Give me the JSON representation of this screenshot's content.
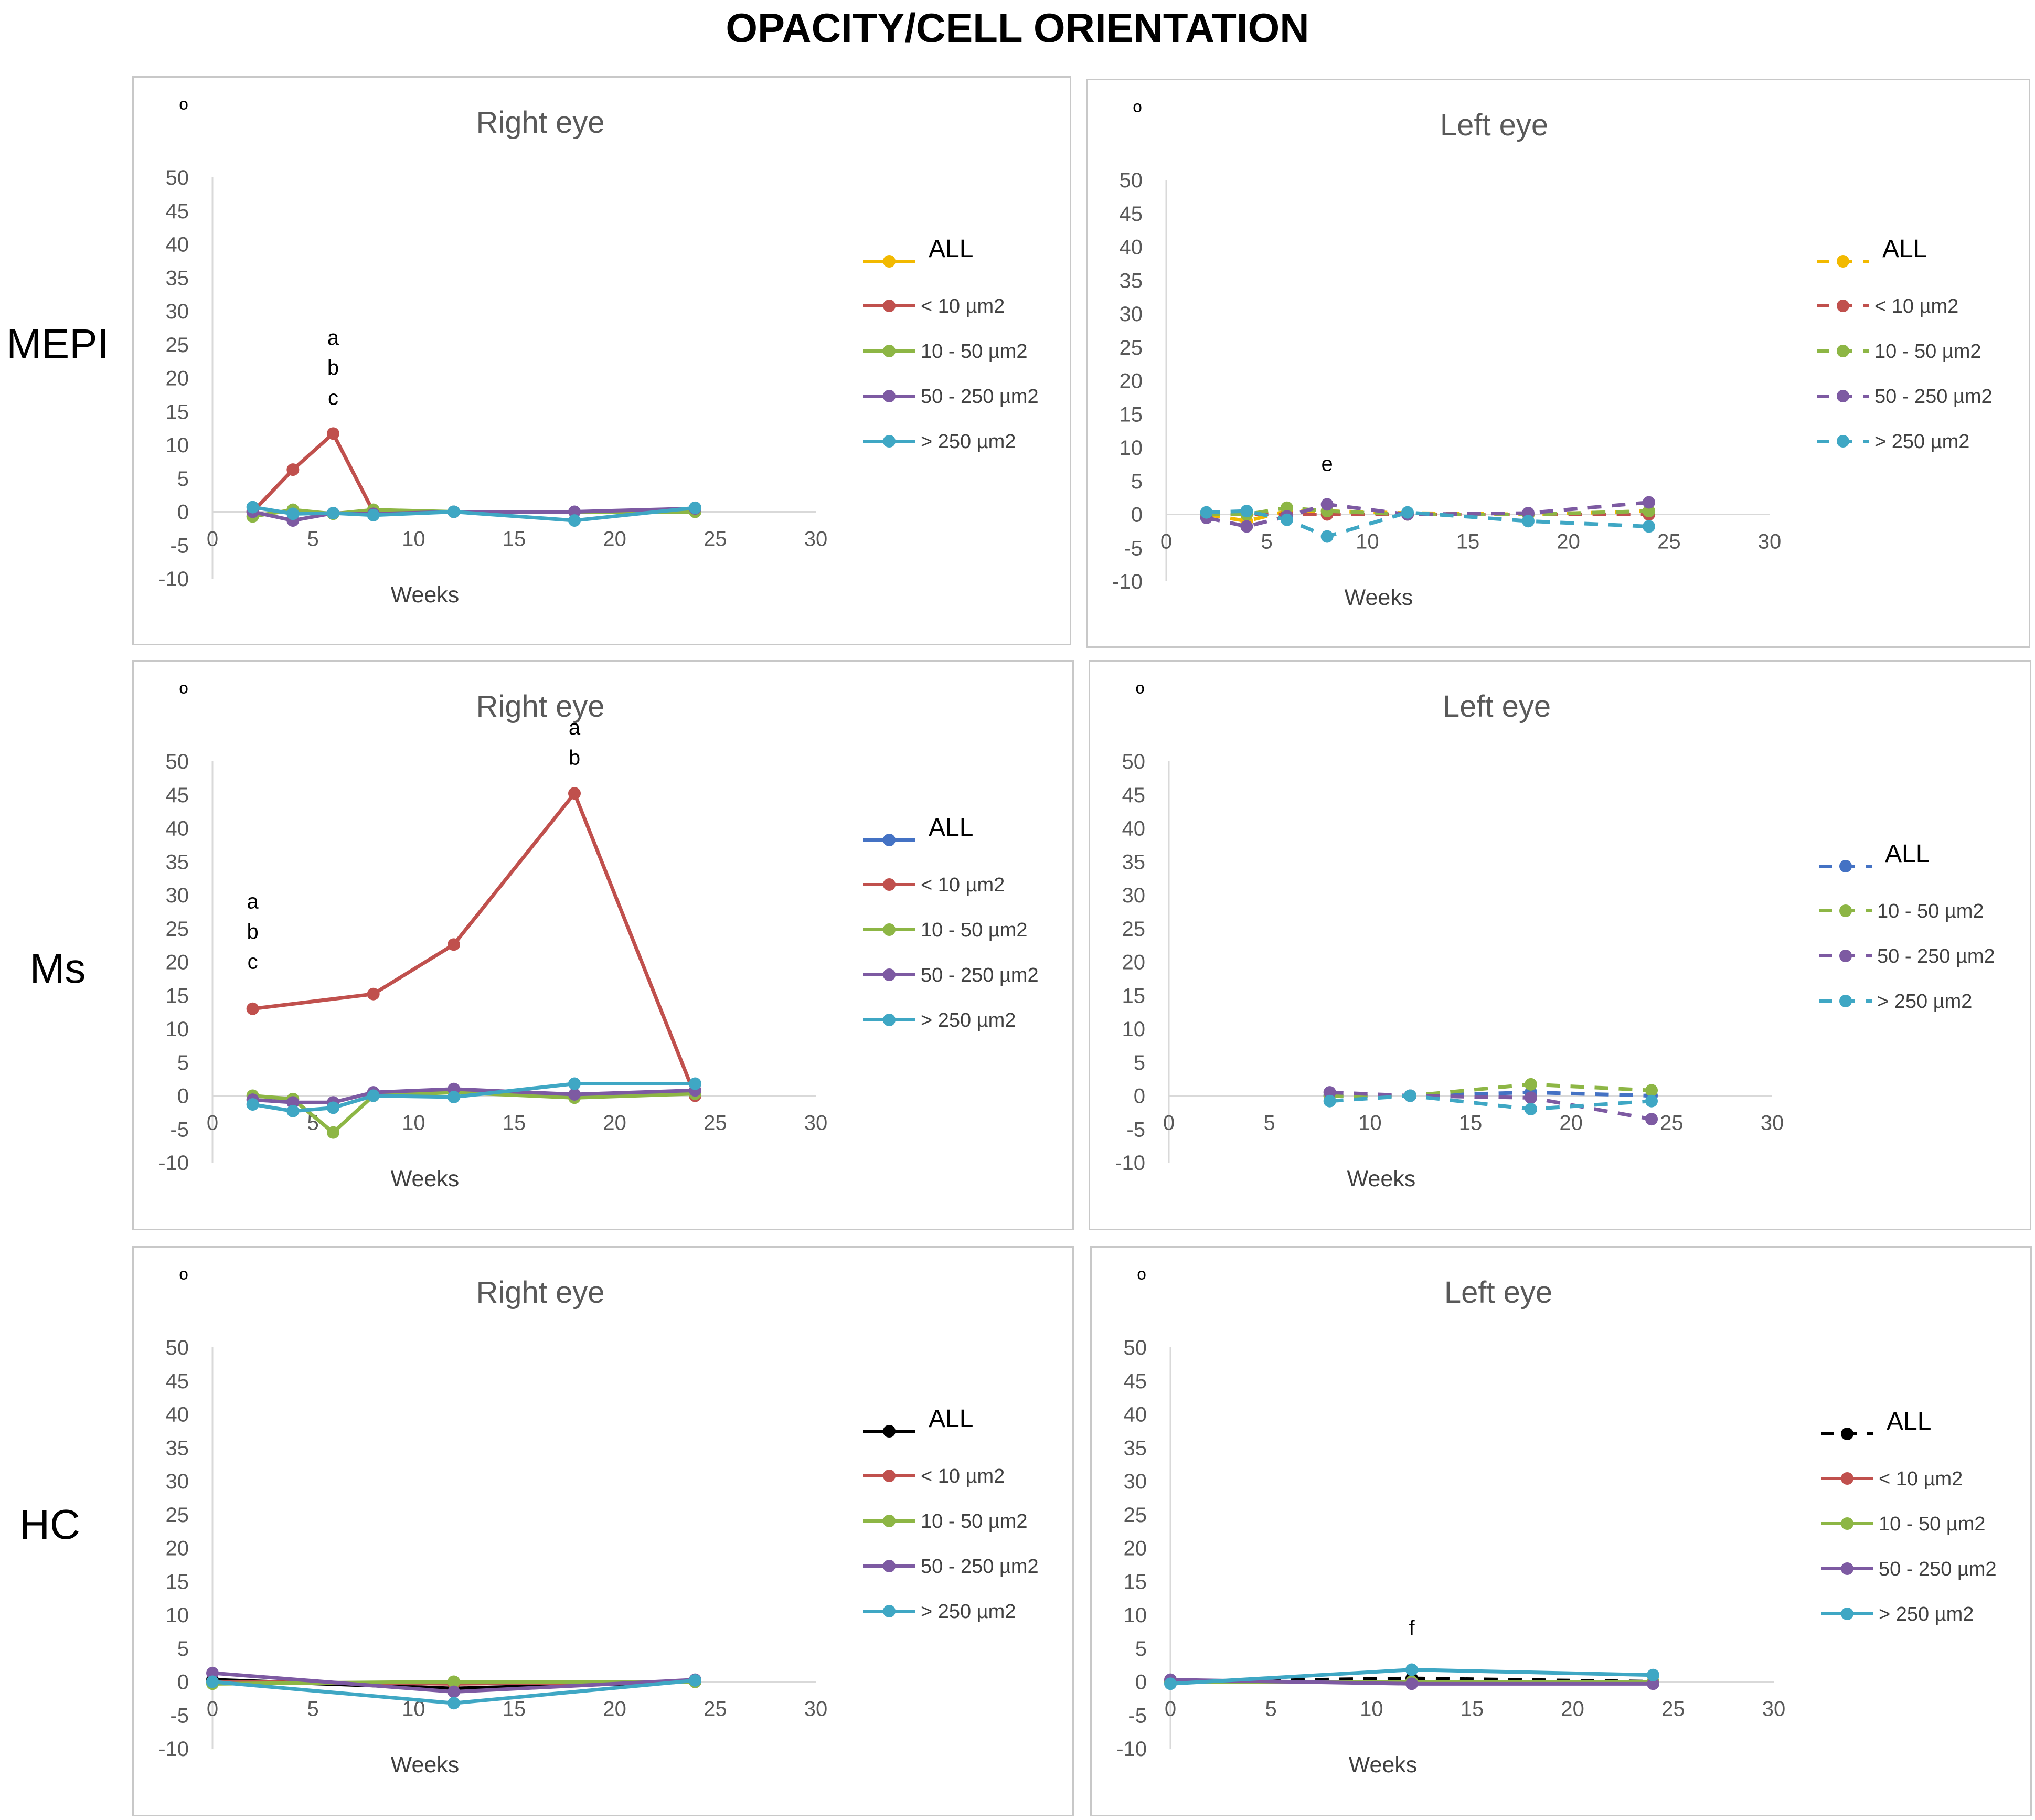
{
  "figure_title": "OPACITY/CELL ORIENTATION",
  "row_labels": [
    "MEPI",
    "Ms",
    "HC"
  ],
  "colors": {
    "ALL_mepi": "#F2B900",
    "ALL_ms": "#4472C4",
    "ALL_hc": "#000000",
    "lt10": "#C0504D",
    "r10_50": "#8DB645",
    "r50_250": "#7D5AA2",
    "gt250": "#3FA7C4"
  },
  "chart_data": [
    {
      "type": "line",
      "row": "MEPI",
      "title": "Right eye",
      "ylabel": "º",
      "xlabel": "Weeks",
      "xlim": [
        0,
        30
      ],
      "ylim": [
        -10,
        50
      ],
      "xticks": [
        "0",
        "5",
        "10",
        "15",
        "20",
        "25",
        "30"
      ],
      "yticks": [
        "50",
        "45",
        "40",
        "35",
        "30",
        "25",
        "20",
        "15",
        "10",
        "5",
        "0",
        "-5",
        "-10"
      ],
      "line_style": "solid",
      "grid": false,
      "legend_position": "right",
      "series": [
        {
          "name": "ALL",
          "color_key": "ALL_mepi",
          "x": [],
          "y": []
        },
        {
          "name": "< 10 µm2",
          "color_key": "lt10",
          "x": [
            2,
            4,
            6,
            8
          ],
          "y": [
            0,
            6.3,
            11.7,
            0
          ]
        },
        {
          "name": "10 - 50 µm2",
          "color_key": "r10_50",
          "x": [
            2,
            4,
            6,
            8,
            12,
            24
          ],
          "y": [
            -0.7,
            0.3,
            -0.3,
            0.3,
            0,
            0
          ]
        },
        {
          "name": "50 - 250 µm2",
          "color_key": "r50_250",
          "x": [
            2,
            4,
            6,
            8,
            12,
            18,
            24
          ],
          "y": [
            0,
            -1.3,
            -0.2,
            -0.3,
            0,
            0,
            0.5
          ]
        },
        {
          "name": "> 250 µm2",
          "color_key": "gt250",
          "x": [
            2,
            4,
            6,
            8,
            12,
            18,
            24
          ],
          "y": [
            0.7,
            -0.3,
            -0.2,
            -0.5,
            0,
            -1.3,
            0.6
          ]
        }
      ],
      "annotations": [
        {
          "text": "a",
          "x": 6,
          "y": 25
        },
        {
          "text": "b",
          "x": 6,
          "y": 20.5
        },
        {
          "text": "c",
          "x": 6,
          "y": 16
        }
      ]
    },
    {
      "type": "line",
      "row": "MEPI",
      "title": "Left eye",
      "ylabel": "º",
      "xlabel": "Weeks",
      "xlim": [
        0,
        30
      ],
      "ylim": [
        -10,
        50
      ],
      "xticks": [
        "0",
        "5",
        "10",
        "15",
        "20",
        "25",
        "30"
      ],
      "yticks": [
        "50",
        "45",
        "40",
        "35",
        "30",
        "25",
        "20",
        "15",
        "10",
        "5",
        "0",
        "-5",
        "-10"
      ],
      "line_style": "dashed",
      "grid": false,
      "legend_position": "right",
      "series": [
        {
          "name": "ALL",
          "color_key": "ALL_mepi",
          "x": [
            2,
            4,
            6,
            8,
            12,
            18,
            24
          ],
          "y": [
            0,
            -1,
            0.5,
            0.5,
            0.2,
            0,
            0.5
          ]
        },
        {
          "name": "< 10 µm2",
          "color_key": "lt10",
          "x": [
            2,
            4,
            6,
            8,
            12,
            18,
            24
          ],
          "y": [
            0,
            0,
            0,
            0,
            0,
            0,
            0
          ]
        },
        {
          "name": "10 - 50 µm2",
          "color_key": "r10_50",
          "x": [
            2,
            4,
            6,
            8,
            12,
            18,
            24
          ],
          "y": [
            0,
            0,
            1,
            0.5,
            0,
            0,
            0.5
          ]
        },
        {
          "name": "50 - 250 µm2",
          "color_key": "r50_250",
          "x": [
            2,
            4,
            6,
            8,
            12,
            18,
            24
          ],
          "y": [
            -0.5,
            -1.8,
            -0.3,
            1.5,
            0,
            0.2,
            1.8
          ]
        },
        {
          "name": "> 250 µm2",
          "color_key": "gt250",
          "x": [
            2,
            4,
            6,
            8,
            12,
            18,
            24
          ],
          "y": [
            0.3,
            0.5,
            -0.8,
            -3.3,
            0.3,
            -1,
            -1.8
          ]
        }
      ],
      "annotations": [
        {
          "text": "e",
          "x": 8,
          "y": 6.5
        }
      ]
    },
    {
      "type": "line",
      "row": "Ms",
      "title": "Right eye",
      "ylabel": "º",
      "xlabel": "Weeks",
      "xlim": [
        0,
        30
      ],
      "ylim": [
        -10,
        50
      ],
      "xticks": [
        "0",
        "5",
        "10",
        "15",
        "20",
        "25",
        "30"
      ],
      "yticks": [
        "50",
        "45",
        "40",
        "35",
        "30",
        "25",
        "20",
        "15",
        "10",
        "5",
        "0",
        "-5",
        "-10"
      ],
      "line_style": "solid",
      "grid": false,
      "legend_position": "right",
      "series": [
        {
          "name": "ALL",
          "color_key": "ALL_ms",
          "x": [],
          "y": []
        },
        {
          "name": "< 10 µm2",
          "color_key": "lt10",
          "x": [
            2,
            8,
            12,
            18,
            24
          ],
          "y": [
            13,
            15.2,
            22.6,
            45.2,
            0
          ]
        },
        {
          "name": "10 - 50 µm2",
          "color_key": "r10_50",
          "x": [
            2,
            4,
            6,
            8,
            12,
            18,
            24
          ],
          "y": [
            0,
            -0.5,
            -5.5,
            0,
            0.5,
            -0.3,
            0.3
          ]
        },
        {
          "name": "50 - 250 µm2",
          "color_key": "r50_250",
          "x": [
            2,
            4,
            6,
            8,
            12,
            18,
            24
          ],
          "y": [
            -0.6,
            -1,
            -1,
            0.5,
            1,
            0.2,
            0.8
          ]
        },
        {
          "name": "> 250 µm2",
          "color_key": "gt250",
          "x": [
            2,
            4,
            6,
            8,
            12,
            18,
            24
          ],
          "y": [
            -1.3,
            -2.3,
            -1.8,
            0,
            -0.2,
            1.8,
            1.8
          ]
        }
      ],
      "annotations": [
        {
          "text": "a",
          "x": 2,
          "y": 28
        },
        {
          "text": "b",
          "x": 2,
          "y": 23.5
        },
        {
          "text": "c",
          "x": 2,
          "y": 19
        },
        {
          "text": "a",
          "x": 18,
          "y": 54
        },
        {
          "text": "b",
          "x": 18,
          "y": 49.5
        }
      ]
    },
    {
      "type": "line",
      "row": "Ms",
      "title": "Left eye",
      "ylabel": "º",
      "xlabel": "Weeks",
      "xlim": [
        0,
        30
      ],
      "ylim": [
        -10,
        50
      ],
      "xticks": [
        "0",
        "5",
        "10",
        "15",
        "20",
        "25",
        "30"
      ],
      "yticks": [
        "50",
        "45",
        "40",
        "35",
        "30",
        "25",
        "20",
        "15",
        "10",
        "5",
        "0",
        "-5",
        "-10"
      ],
      "line_style": "dashed",
      "grid": false,
      "legend_position": "right",
      "series": [
        {
          "name": "ALL",
          "color_key": "ALL_ms",
          "x": [
            8,
            12,
            18,
            24
          ],
          "y": [
            0,
            0,
            0.5,
            0
          ]
        },
        {
          "name": "10 - 50 µm2",
          "color_key": "r10_50",
          "x": [
            8,
            12,
            18,
            24
          ],
          "y": [
            0,
            0,
            1.7,
            0.8
          ]
        },
        {
          "name": "50 - 250 µm2",
          "color_key": "r50_250",
          "x": [
            8,
            12,
            18,
            24
          ],
          "y": [
            0.5,
            0,
            -0.3,
            -3.5
          ]
        },
        {
          "name": "> 250 µm2",
          "color_key": "gt250",
          "x": [
            8,
            12,
            18,
            24
          ],
          "y": [
            -0.8,
            0,
            -2,
            -0.8
          ]
        }
      ],
      "annotations": []
    },
    {
      "type": "line",
      "row": "HC",
      "title": "Right eye",
      "ylabel": "º",
      "xlabel": "Weeks",
      "xlim": [
        0,
        30
      ],
      "ylim": [
        -10,
        50
      ],
      "xticks": [
        "0",
        "5",
        "10",
        "15",
        "20",
        "25",
        "30"
      ],
      "yticks": [
        "50",
        "45",
        "40",
        "35",
        "30",
        "25",
        "20",
        "15",
        "10",
        "5",
        "0",
        "-5",
        "-10"
      ],
      "line_style": "solid",
      "grid": false,
      "legend_position": "right",
      "series": [
        {
          "name": "ALL",
          "color_key": "ALL_hc",
          "x": [
            0,
            12,
            24
          ],
          "y": [
            0.3,
            -1,
            0
          ]
        },
        {
          "name": "< 10 µm2",
          "color_key": "lt10",
          "x": [
            0,
            12,
            24
          ],
          "y": [
            0,
            -0.3,
            0
          ]
        },
        {
          "name": "10 - 50 µm2",
          "color_key": "r10_50",
          "x": [
            0,
            12,
            24
          ],
          "y": [
            -0.3,
            0,
            0
          ]
        },
        {
          "name": "50 - 250 µm2",
          "color_key": "r50_250",
          "x": [
            0,
            12,
            24
          ],
          "y": [
            1.3,
            -1.5,
            0.3
          ]
        },
        {
          "name": "> 250 µm2",
          "color_key": "gt250",
          "x": [
            0,
            12,
            24
          ],
          "y": [
            0,
            -3.2,
            0.2
          ]
        }
      ],
      "annotations": []
    },
    {
      "type": "line",
      "row": "HC",
      "title": "Left eye",
      "ylabel": "º",
      "xlabel": "Weeks",
      "xlim": [
        0,
        30
      ],
      "ylim": [
        -10,
        50
      ],
      "xticks": [
        "0",
        "5",
        "10",
        "15",
        "20",
        "25",
        "30"
      ],
      "yticks": [
        "50",
        "45",
        "40",
        "35",
        "30",
        "25",
        "20",
        "15",
        "10",
        "5",
        "0",
        "-5",
        "-10"
      ],
      "line_style": "solid",
      "all_dashed": true,
      "grid": false,
      "legend_position": "right",
      "series": [
        {
          "name": "ALL",
          "color_key": "ALL_hc",
          "x": [
            0,
            12,
            24
          ],
          "y": [
            0,
            0.5,
            0
          ]
        },
        {
          "name": "< 10 µm2",
          "color_key": "lt10",
          "x": [
            0,
            12,
            24
          ],
          "y": [
            0,
            0,
            0
          ]
        },
        {
          "name": "10 - 50 µm2",
          "color_key": "r10_50",
          "x": [
            0,
            12,
            24
          ],
          "y": [
            0,
            0,
            0
          ]
        },
        {
          "name": "50 - 250 µm2",
          "color_key": "r50_250",
          "x": [
            0,
            12,
            24
          ],
          "y": [
            0.3,
            -0.3,
            -0.3
          ]
        },
        {
          "name": "> 250 µm2",
          "color_key": "gt250",
          "x": [
            0,
            12,
            24
          ],
          "y": [
            -0.3,
            1.8,
            1
          ]
        }
      ],
      "annotations": [
        {
          "text": "f",
          "x": 12,
          "y": 7
        }
      ]
    }
  ]
}
